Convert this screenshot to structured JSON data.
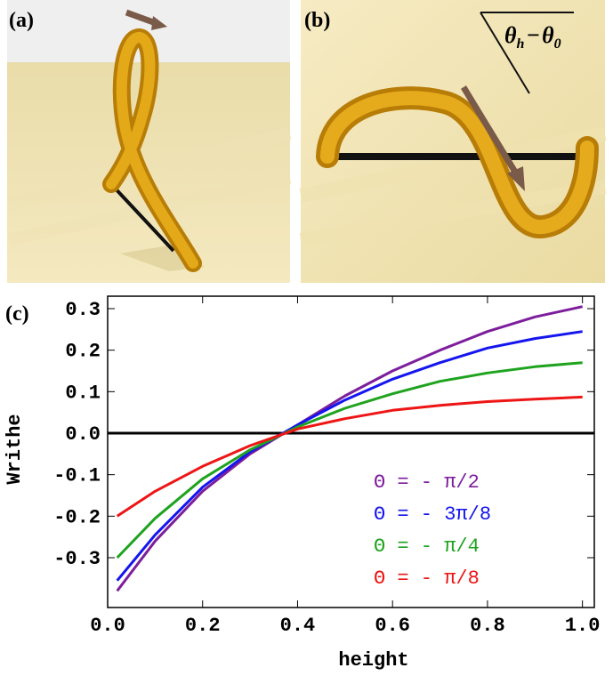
{
  "panels": {
    "a": {
      "label": "(a)"
    },
    "b": {
      "label": "(b)",
      "formula": {
        "main1": "θ",
        "sub1": "h",
        "op": "−",
        "main2": "θ",
        "sub2": "0"
      }
    },
    "c": {
      "label": "(c)"
    }
  },
  "chart_data": {
    "type": "line",
    "x_label": "height",
    "y_label": "Writhe",
    "x": [
      0.02,
      0.1,
      0.2,
      0.3,
      0.4,
      0.5,
      0.6,
      0.7,
      0.8,
      0.9,
      1.0
    ],
    "series": [
      {
        "name": "Θ = - π/2",
        "color": "#7d1e9c",
        "values": [
          -0.38,
          -0.26,
          -0.14,
          -0.05,
          0.02,
          0.09,
          0.15,
          0.2,
          0.245,
          0.28,
          0.305
        ]
      },
      {
        "name": "Θ = - 3π/8",
        "color": "#1515ee",
        "values": [
          -0.355,
          -0.245,
          -0.13,
          -0.045,
          0.02,
          0.08,
          0.13,
          0.17,
          0.205,
          0.228,
          0.245
        ]
      },
      {
        "name": "Θ = - π/4",
        "color": "#1fa31f",
        "values": [
          -0.3,
          -0.205,
          -0.11,
          -0.04,
          0.015,
          0.06,
          0.095,
          0.125,
          0.145,
          0.16,
          0.17
        ]
      },
      {
        "name": "Θ = - π/8",
        "color": "#ee1515",
        "values": [
          -0.2,
          -0.14,
          -0.08,
          -0.03,
          0.01,
          0.035,
          0.055,
          0.067,
          0.076,
          0.082,
          0.087
        ]
      }
    ],
    "xlim": [
      0,
      1.025
    ],
    "ylim": [
      -0.42,
      0.33
    ],
    "xticks": [
      {
        "value": 0,
        "label": "0.0"
      },
      0.2,
      0.4,
      0.6,
      0.8,
      {
        "value": 1,
        "label": "1.0"
      }
    ],
    "yticks": [
      0.3,
      0.2,
      0.1,
      {
        "value": 0,
        "label": "0.0"
      },
      -0.1,
      -0.2,
      -0.3
    ]
  }
}
